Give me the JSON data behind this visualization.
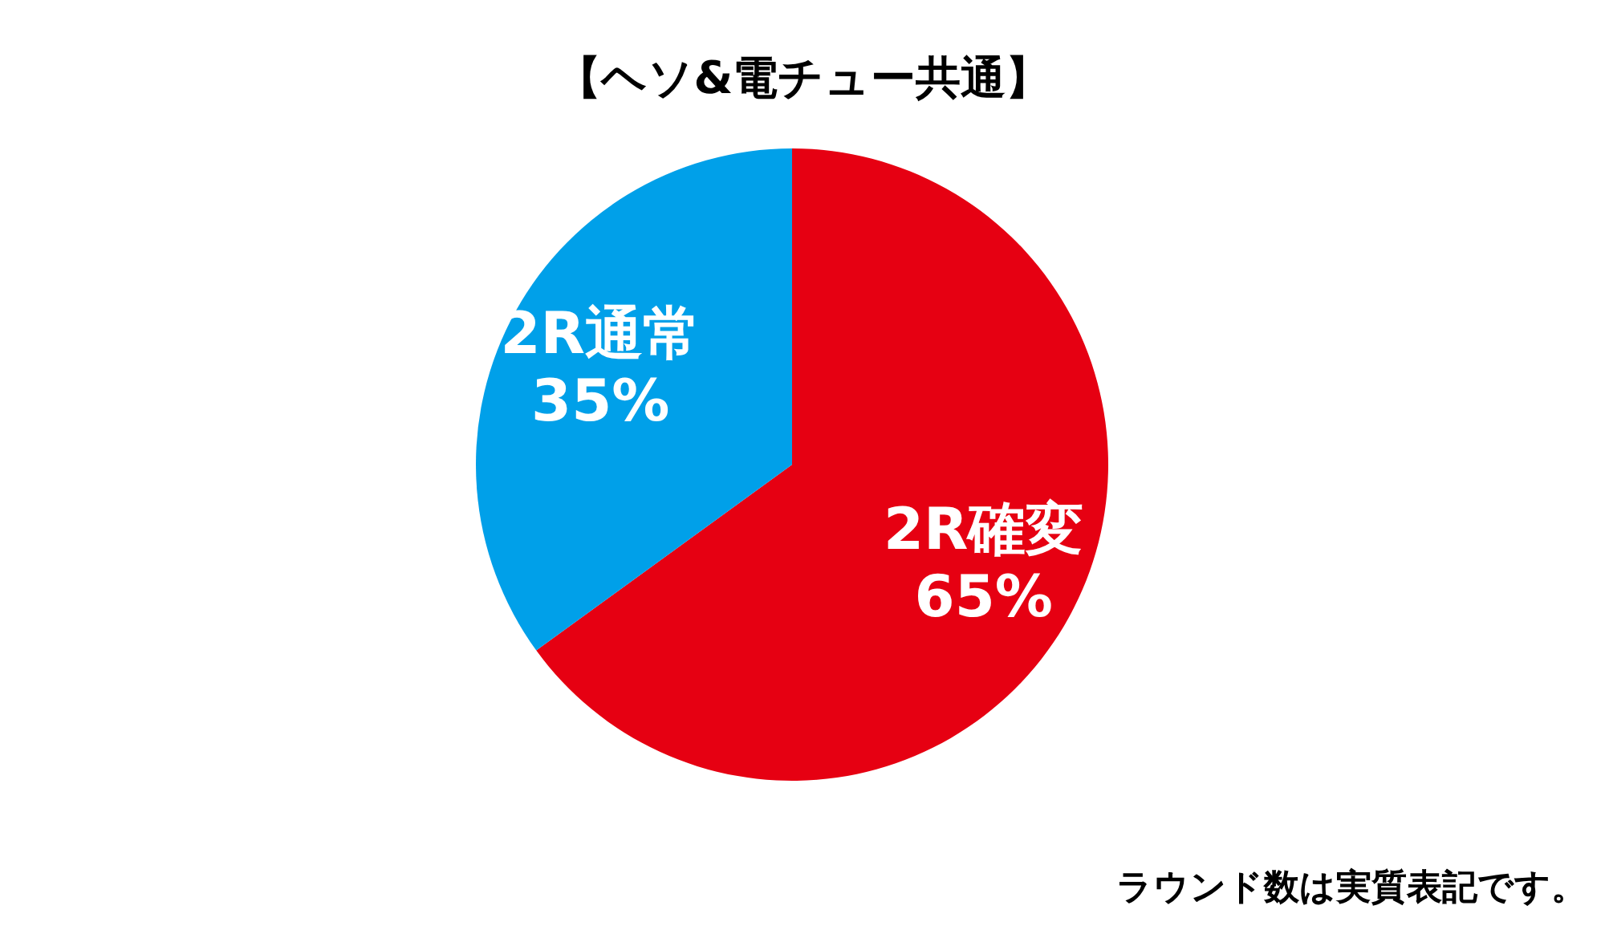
{
  "chart_data": {
    "type": "pie",
    "title": "【ヘソ&電チュー共通】",
    "categories": [
      "2R確変",
      "2R通常"
    ],
    "values": [
      65,
      35
    ],
    "value_labels": [
      "65%",
      "35%"
    ],
    "colors": [
      "#e60012",
      "#00a0e9"
    ],
    "annotations": [
      "ラウンド数は実質表記です。"
    ]
  }
}
